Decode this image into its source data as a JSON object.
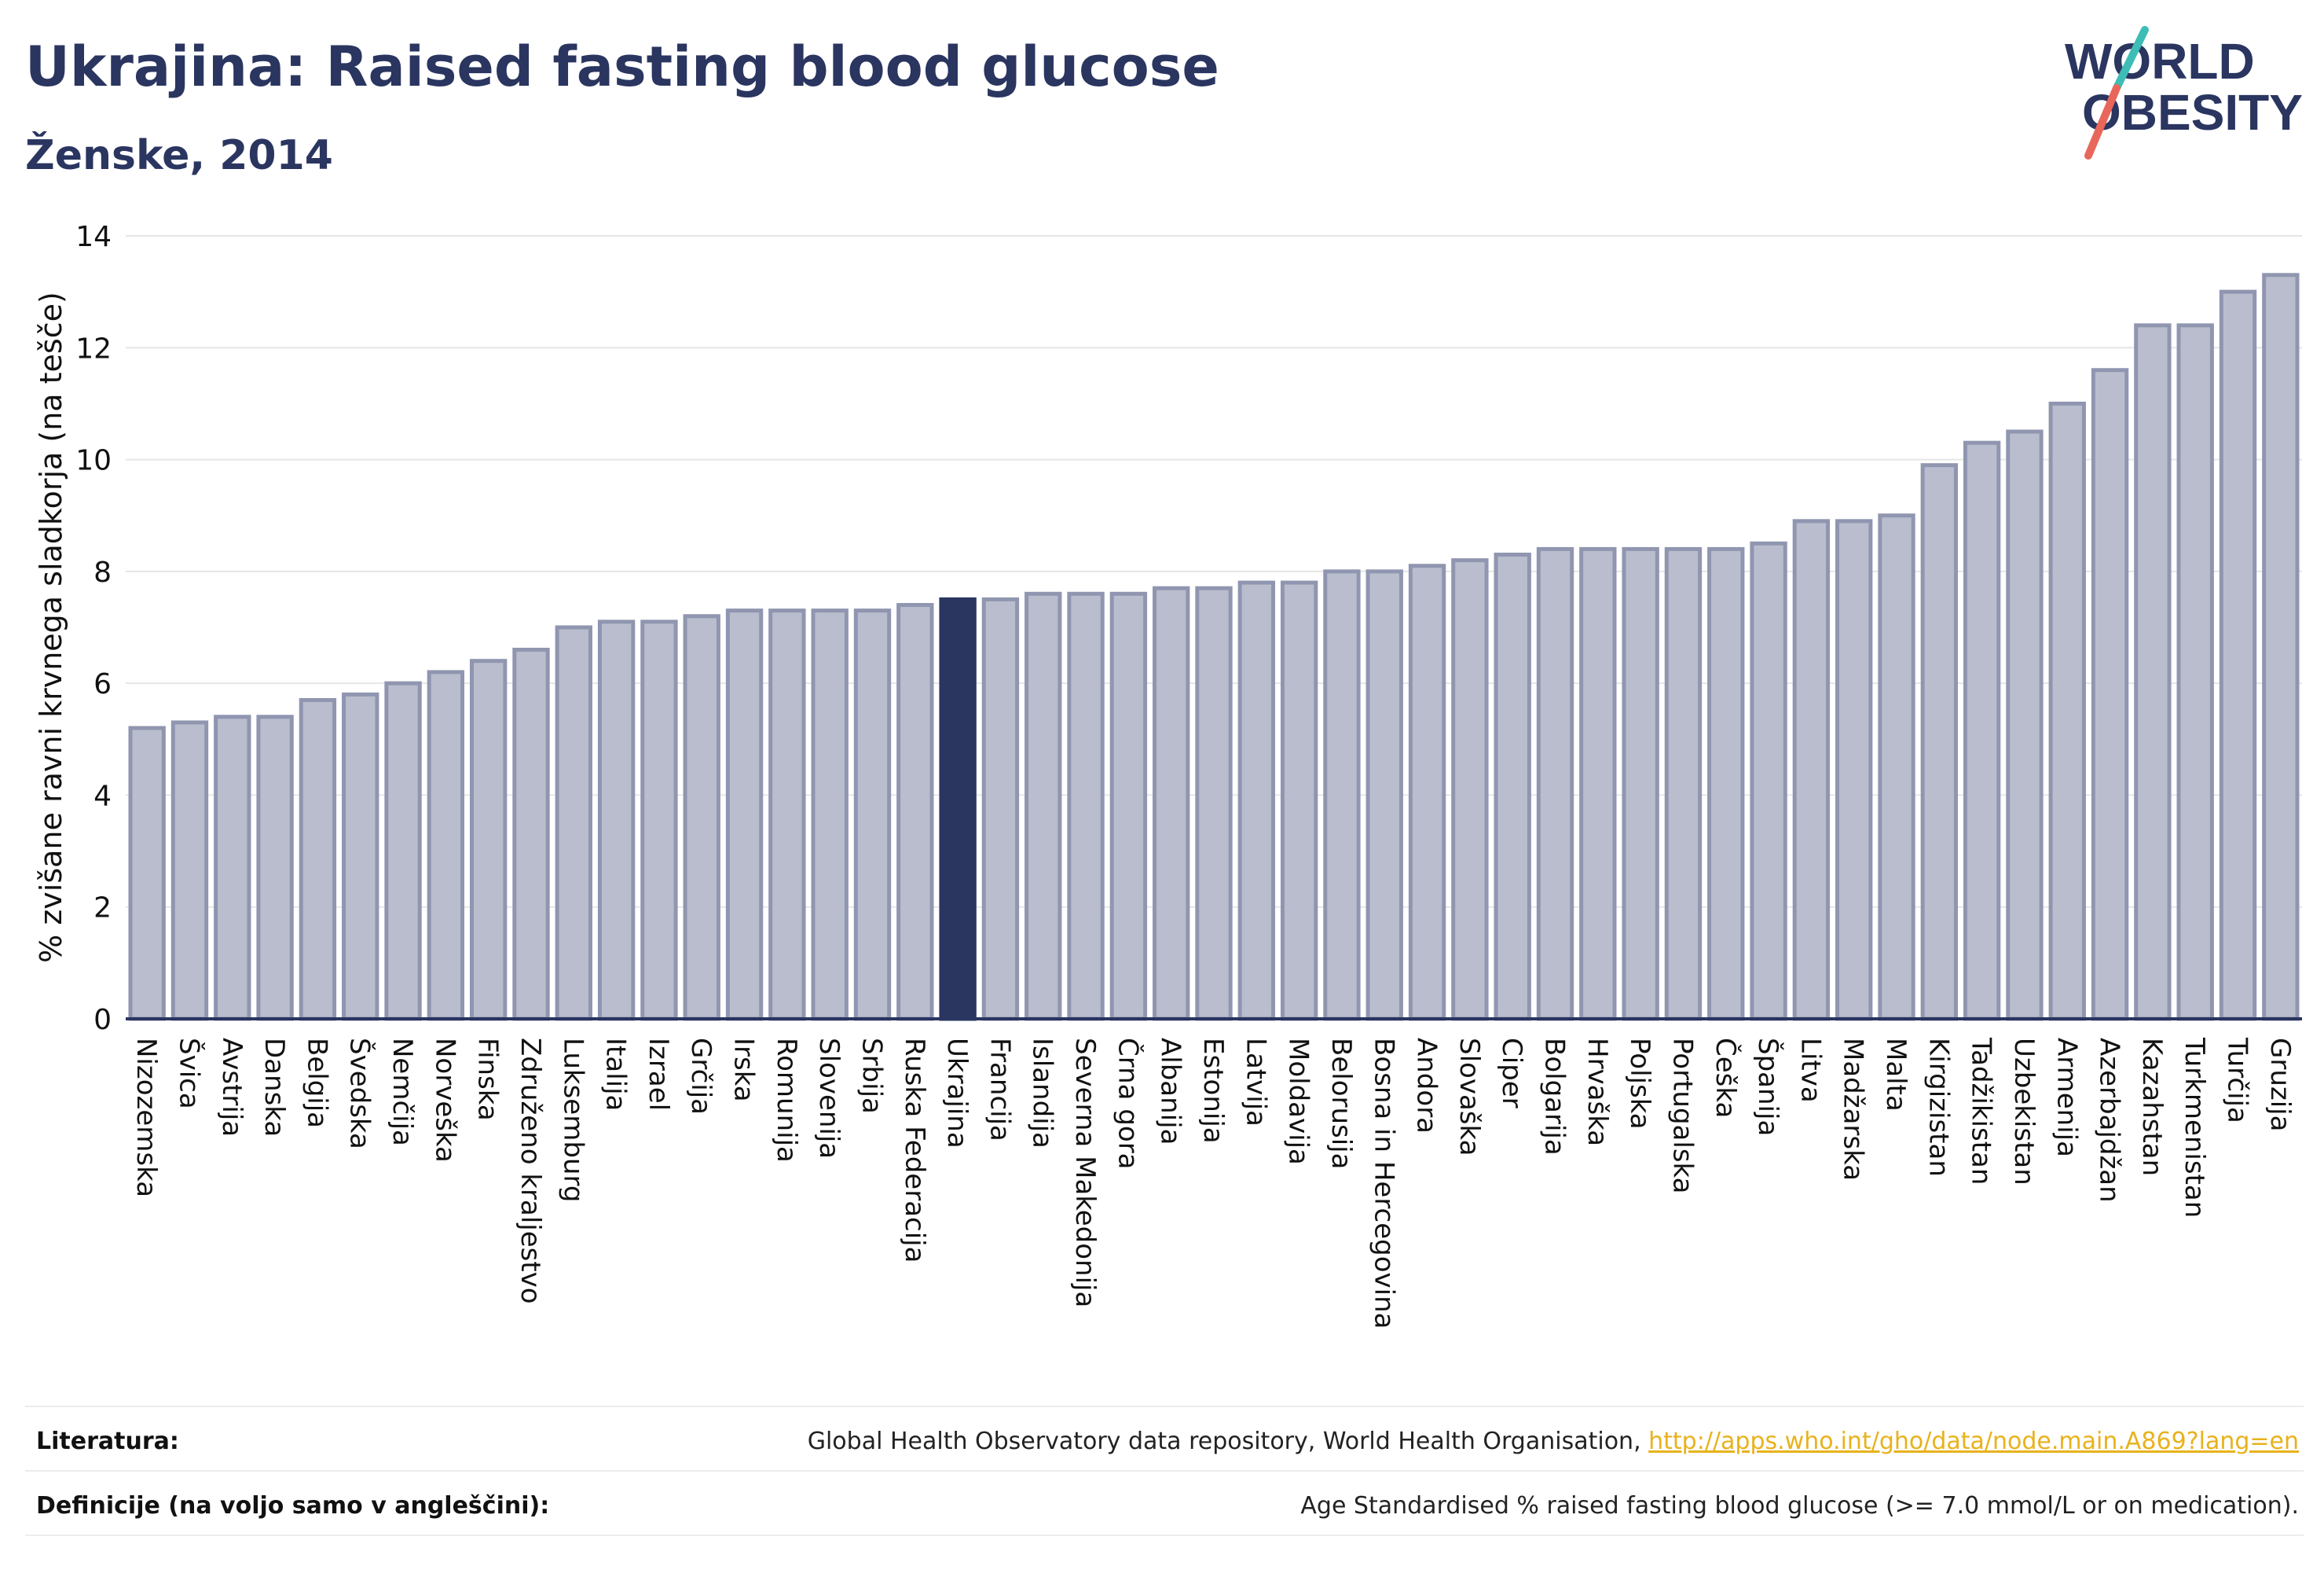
{
  "header": {
    "title": "Ukrajina: Raised fasting blood glucose",
    "subtitle": "Ženske, 2014"
  },
  "logo": {
    "line1": "WORLD",
    "line2": "OBESITY",
    "text_color": "#2a3560",
    "slash_top_color": "#3dbdb6",
    "slash_bottom_color": "#e8675a"
  },
  "colors": {
    "bar_fill": "#b9bdcd",
    "bar_stroke": "#9096b0",
    "highlight_fill": "#2a3560",
    "grid": "#e6e6e6",
    "axis": "#2a3560",
    "text": "#111111"
  },
  "chart_data": {
    "type": "bar",
    "ylabel": "% zvišane ravni krvnega sladkorja (na tešče)",
    "ylim": [
      0,
      14
    ],
    "yticks": [
      0,
      2,
      4,
      6,
      8,
      10,
      12,
      14
    ],
    "grid": true,
    "highlight": "Ukrajina",
    "categories": [
      "Nizozemska",
      "Švica",
      "Avstrija",
      "Danska",
      "Belgija",
      "Švedska",
      "Nemčija",
      "Norveška",
      "Finska",
      "Združeno kraljestvo",
      "Luksemburg",
      "Italija",
      "Izrael",
      "Grčija",
      "Irska",
      "Romunija",
      "Slovenija",
      "Srbija",
      "Ruska Federacija",
      "Ukrajina",
      "Francija",
      "Islandija",
      "Severna Makedonija",
      "Črna gora",
      "Albanija",
      "Estonija",
      "Latvija",
      "Moldavija",
      "Belorusija",
      "Bosna in Hercegovina",
      "Andora",
      "Slovaška",
      "Ciper",
      "Bolgarija",
      "Hrvaška",
      "Poljska",
      "Portugalska",
      "Češka",
      "Španija",
      "Litva",
      "Madžarska",
      "Malta",
      "Kirgizistan",
      "Tadžikistan",
      "Uzbekistan",
      "Armenija",
      "Azerbajdžan",
      "Kazahstan",
      "Turkmenistan",
      "Turčija",
      "Gruzija"
    ],
    "values": [
      5.2,
      5.3,
      5.4,
      5.4,
      5.7,
      5.8,
      6.0,
      6.2,
      6.4,
      6.6,
      7.0,
      7.1,
      7.1,
      7.2,
      7.3,
      7.3,
      7.3,
      7.3,
      7.4,
      7.5,
      7.5,
      7.6,
      7.6,
      7.6,
      7.7,
      7.7,
      7.8,
      7.8,
      8.0,
      8.0,
      8.1,
      8.2,
      8.3,
      8.4,
      8.4,
      8.4,
      8.4,
      8.4,
      8.5,
      8.9,
      8.9,
      9.0,
      9.9,
      10.3,
      10.5,
      11.0,
      11.6,
      12.4,
      12.4,
      13.0,
      13.3
    ]
  },
  "footer": {
    "sources_label": "Literatura:",
    "sources_text": "Global Health Observatory data repository, World Health Organisation, ",
    "sources_link": "http://apps.who.int/gho/data/node.main.A869?lang=en",
    "definitions_label": "Definicije (na voljo samo v angleščini):",
    "definitions_text": "Age Standardised % raised fasting blood glucose (>= 7.0 mmol/L or on medication)."
  }
}
